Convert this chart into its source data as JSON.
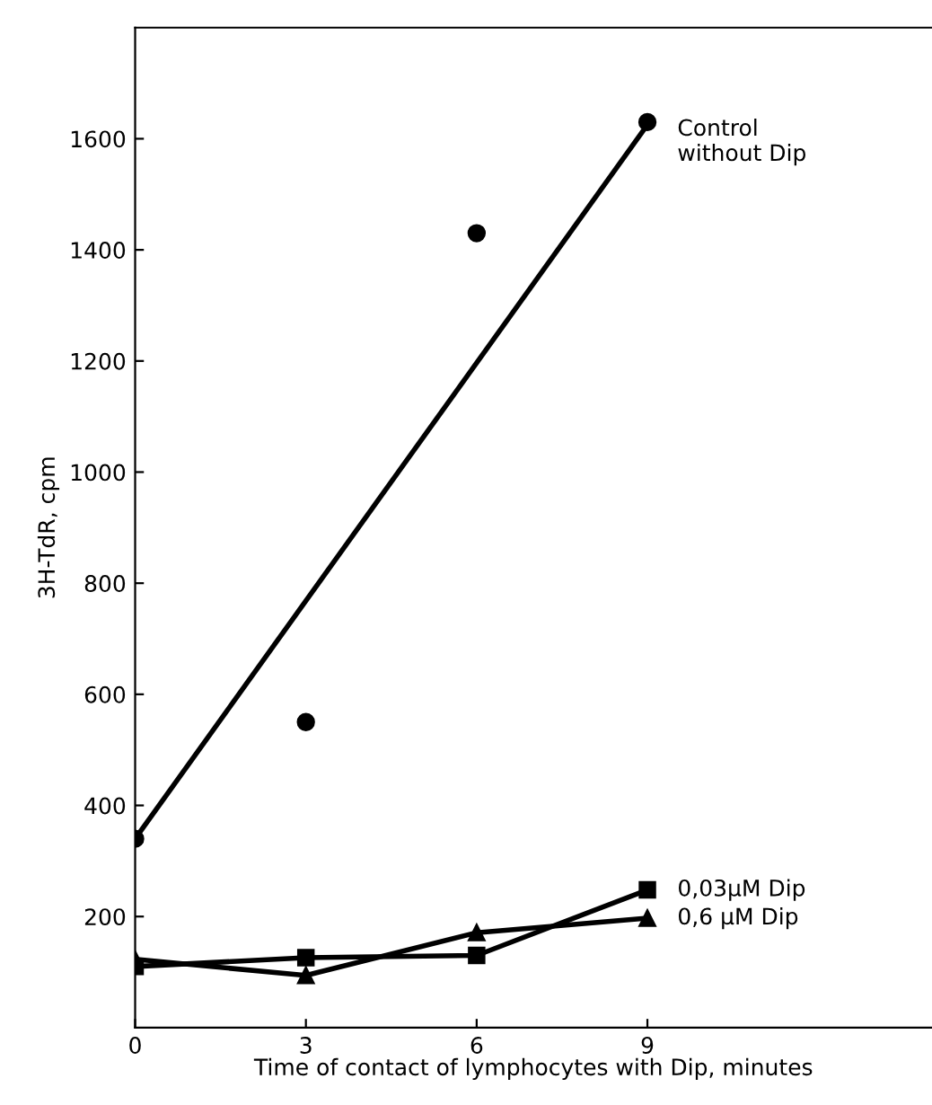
{
  "chart_data": {
    "type": "line",
    "xlabel": "Time of contact of lymphocytes with Dip, minutes",
    "ylabel": "3H-TdR, cpm",
    "xlim": [
      0,
      14
    ],
    "ylim": [
      0,
      1800
    ],
    "xticks": [
      0,
      3,
      6,
      9
    ],
    "yticks": [
      200,
      400,
      600,
      800,
      1000,
      1200,
      1400,
      1600
    ],
    "grid": false,
    "legend": false,
    "line_style": "solid",
    "series": [
      {
        "name": "Control\nwithout Dip",
        "type": "scatter",
        "marker": "circle",
        "color": "#000000",
        "x": [
          0,
          3,
          6,
          9
        ],
        "values": [
          340,
          550,
          1430,
          1630
        ]
      },
      {
        "marker": "none",
        "color": "#000000",
        "x": [
          0,
          9
        ],
        "values": [
          340,
          1625
        ]
      },
      {
        "name": "0,03μM Dip",
        "marker": "square",
        "color": "#000000",
        "x": [
          0,
          3,
          6,
          9
        ],
        "values": [
          110,
          126,
          130,
          248
        ]
      },
      {
        "name": "0,6 μM Dip",
        "marker": "triangle",
        "color": "#000000",
        "x": [
          0,
          3,
          6,
          9
        ],
        "values": [
          123,
          94,
          171,
          197
        ]
      }
    ]
  }
}
